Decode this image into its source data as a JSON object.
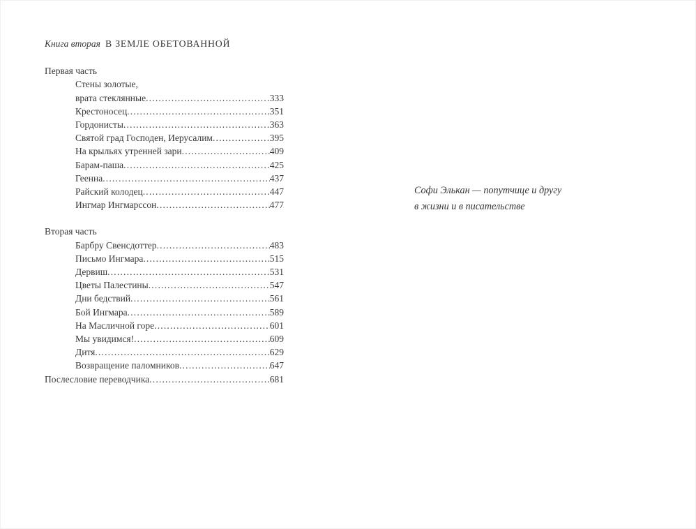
{
  "header": {
    "series_label": "Книга вторая",
    "book_title": "В ЗЕМЛЕ ОБЕТОВАННОЙ"
  },
  "toc": {
    "sections": [
      {
        "label": "Первая часть",
        "entries": [
          {
            "pretitle": "Стены золотые,",
            "title": "врата стеклянные",
            "page": "333"
          },
          {
            "title": "Крестоносец",
            "page": "351"
          },
          {
            "title": "Гордонисты",
            "page": "363"
          },
          {
            "title": "Святой град Господен, Иерусалим",
            "page": "395"
          },
          {
            "title": "На крыльях утренней зари",
            "page": "409"
          },
          {
            "title": "Барам-паша",
            "page": "425"
          },
          {
            "title": "Геенна",
            "page": "437"
          },
          {
            "title": "Райский колодец",
            "page": "447"
          },
          {
            "title": "Ингмар Ингмарссон",
            "page": "477"
          }
        ]
      },
      {
        "label": "Вторая часть",
        "entries": [
          {
            "title": "Барбру Свенсдоттер",
            "page": "483"
          },
          {
            "title": "Письмо Ингмара",
            "page": "515"
          },
          {
            "title": "Дервиш",
            "page": "531"
          },
          {
            "title": "Цветы Палестины",
            "page": "547"
          },
          {
            "title": "Дни бедствий",
            "page": "561"
          },
          {
            "title": "Бой Ингмара",
            "page": "589"
          },
          {
            "title": "На Масличной горе",
            "page": "601"
          },
          {
            "title": "Мы увидимся!",
            "page": "609"
          },
          {
            "title": "Дитя",
            "page": "629"
          },
          {
            "title": "Возвращение паломников",
            "page": "647"
          }
        ]
      }
    ],
    "afterword": {
      "title": "Послесловие переводчика",
      "page": "681"
    }
  },
  "dedication": {
    "line1": "Софи Элькан — попутчице и другу",
    "line2": "в жизни и в писательстве"
  }
}
